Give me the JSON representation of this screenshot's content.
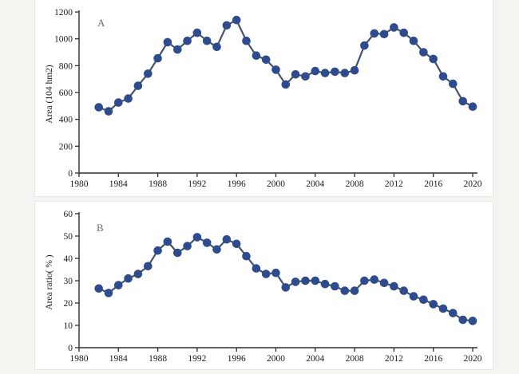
{
  "page": {
    "background": "#f5f4f1",
    "panel_background": "#ffffff",
    "panel_border": "#e8e6e2"
  },
  "colors": {
    "marker": "#2e4b8d",
    "line": "#44546a",
    "axis": "#2e2e2e",
    "tick_text": "#1c1c1c",
    "panel_letter": "#6b6b6b"
  },
  "chart_data": [
    {
      "id": "A",
      "type": "line",
      "panel_label": "A",
      "ylabel": "Area (104 hm2)",
      "xlabel": "",
      "xlim": [
        1980,
        2020
      ],
      "ylim": [
        0,
        1200
      ],
      "grid": false,
      "legend": null,
      "marker": "circle",
      "xticks": [
        1980,
        1984,
        1988,
        1992,
        1996,
        2000,
        2004,
        2008,
        2012,
        2016,
        2020
      ],
      "yticks": [
        0,
        200,
        400,
        600,
        800,
        1000,
        1200
      ],
      "x": [
        1982,
        1983,
        1984,
        1985,
        1986,
        1987,
        1988,
        1989,
        1990,
        1991,
        1992,
        1993,
        1994,
        1995,
        1996,
        1997,
        1998,
        1999,
        2000,
        2001,
        2002,
        2003,
        2004,
        2005,
        2006,
        2007,
        2008,
        2009,
        2010,
        2011,
        2012,
        2013,
        2014,
        2015,
        2016,
        2017,
        2018,
        2019,
        2020
      ],
      "values": [
        490,
        460,
        525,
        555,
        650,
        740,
        855,
        975,
        920,
        985,
        1045,
        985,
        940,
        1100,
        1140,
        985,
        875,
        845,
        770,
        660,
        735,
        720,
        760,
        745,
        755,
        745,
        765,
        950,
        1040,
        1035,
        1085,
        1045,
        985,
        900,
        850,
        720,
        665,
        535,
        495
      ]
    },
    {
      "id": "B",
      "type": "line",
      "panel_label": "B",
      "ylabel": "Area ratio( % )",
      "xlabel": "",
      "xlim": [
        1980,
        2020
      ],
      "ylim": [
        0,
        60
      ],
      "grid": false,
      "legend": null,
      "marker": "circle",
      "xticks": [
        1980,
        1984,
        1988,
        1992,
        1996,
        2000,
        2004,
        2008,
        2012,
        2016,
        2020
      ],
      "yticks": [
        0,
        10,
        20,
        30,
        40,
        50,
        60
      ],
      "x": [
        1982,
        1983,
        1984,
        1985,
        1986,
        1987,
        1988,
        1989,
        1990,
        1991,
        1992,
        1993,
        1994,
        1995,
        1996,
        1997,
        1998,
        1999,
        2000,
        2001,
        2002,
        2003,
        2004,
        2005,
        2006,
        2007,
        2008,
        2009,
        2010,
        2011,
        2012,
        2013,
        2014,
        2015,
        2016,
        2017,
        2018,
        2019,
        2020
      ],
      "values": [
        26.5,
        24.5,
        28,
        31,
        33,
        36.5,
        43.5,
        47.5,
        42.5,
        45.5,
        49.5,
        47,
        44,
        48.5,
        46.5,
        41,
        35.5,
        33,
        33.5,
        27,
        29.5,
        30,
        30,
        28.5,
        27.5,
        25.5,
        25.5,
        30,
        30.5,
        29,
        27.5,
        25.5,
        23,
        21.5,
        19.5,
        17.5,
        15.5,
        12.5,
        12
      ]
    }
  ]
}
